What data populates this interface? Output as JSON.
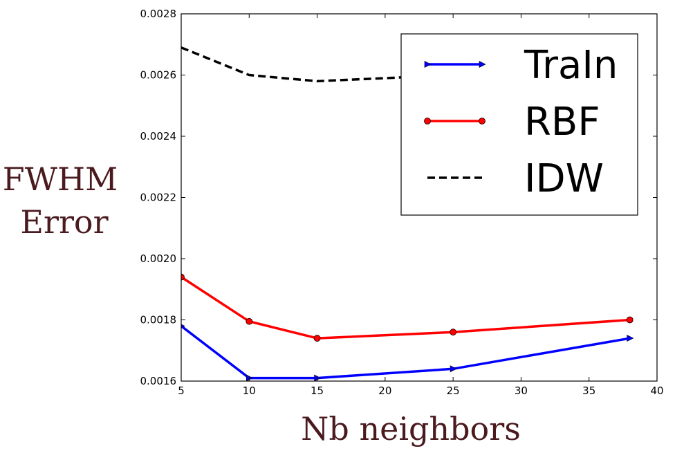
{
  "chart_data": {
    "type": "line",
    "title": "",
    "xlabel": "Nb neighbors",
    "ylabel": [
      "FWHM",
      "Error"
    ],
    "xlim": [
      5,
      40
    ],
    "ylim": [
      0.0016,
      0.0028
    ],
    "xticks": [
      5,
      10,
      15,
      20,
      25,
      30,
      35,
      40
    ],
    "yticks": [
      "0.0016",
      "0.0018",
      "0.0020",
      "0.0022",
      "0.0024",
      "0.0026",
      "0.0028"
    ],
    "grid": false,
    "legend_position": "top-right",
    "series": [
      {
        "name": "TraIn",
        "color": "#0000ff",
        "marker": "triangle-right",
        "dash": "solid",
        "x": [
          5,
          10,
          15,
          25,
          38
        ],
        "y": [
          0.00178,
          0.00161,
          0.00161,
          0.00164,
          0.00174
        ]
      },
      {
        "name": "RBF",
        "color": "#ff0000",
        "marker": "circle",
        "dash": "solid",
        "x": [
          5,
          10,
          15,
          25,
          38
        ],
        "y": [
          0.00194,
          0.001795,
          0.00174,
          0.00176,
          0.0018
        ]
      },
      {
        "name": "IDW",
        "color": "#000000",
        "marker": "none",
        "dash": "dashed",
        "x": [
          5,
          10,
          15,
          25,
          38
        ],
        "y": [
          0.00269,
          0.0026,
          0.00258,
          0.0026,
          0.00265
        ]
      }
    ]
  }
}
